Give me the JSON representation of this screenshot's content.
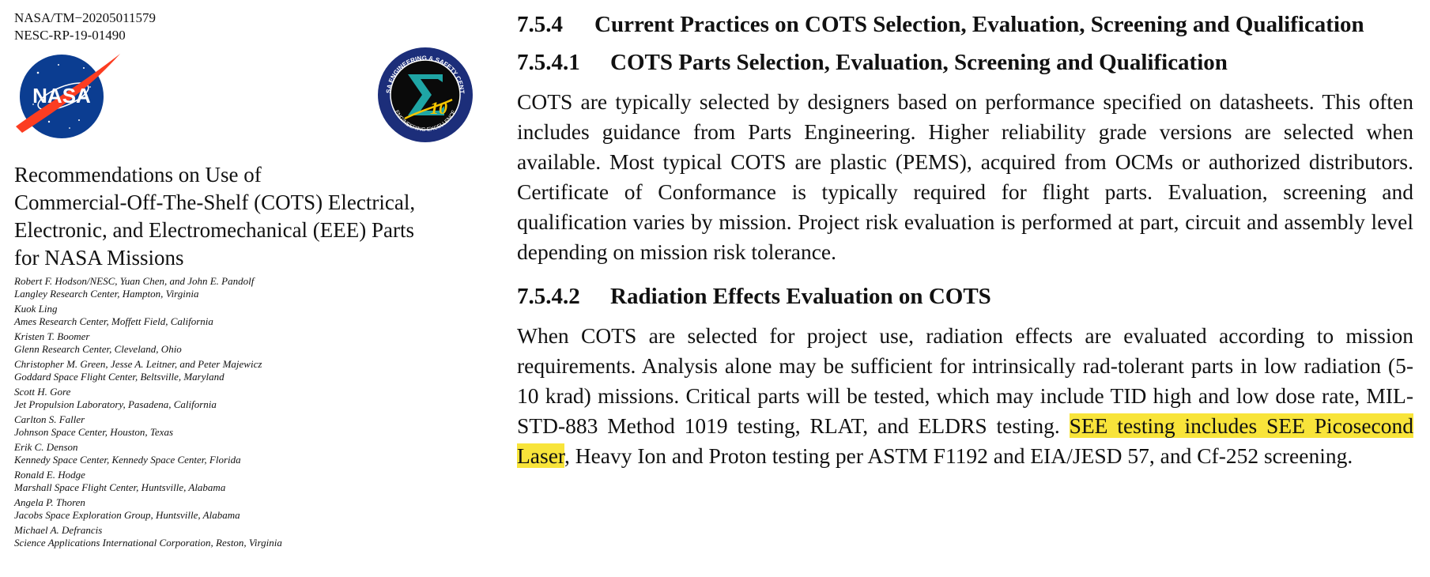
{
  "report": {
    "ids": [
      "NASA/TM−20205011579",
      "NESC-RP-19-01490"
    ],
    "logos": {
      "nasa": {
        "name": "nasa-meatball-logo",
        "lettering": "NASA",
        "colors": [
          "#0b3d91",
          "#fc3d21",
          "#ffffff"
        ]
      },
      "nesc": {
        "name": "nesc-sigma-logo",
        "lettering": "NASA ENGINEERING & SAFETY CENTER · ENGINEERING EXCELLENCE · 10",
        "colors": [
          "#1c2e7a",
          "#0a0a0a",
          "#1fa5a5",
          "#f5c400"
        ]
      }
    },
    "title_lines": [
      "Recommendations on Use of",
      "Commercial-Off-The-Shelf (COTS) Electrical,",
      "Electronic, and Electromechanical (EEE) Parts",
      "for NASA Missions"
    ],
    "authors": [
      {
        "names": "Robert F. Hodson/NESC, Yuan Chen, and John E. Pandolf",
        "org": "Langley Research Center, Hampton, Virginia"
      },
      {
        "names": "Kuok Ling",
        "org": "Ames Research Center, Moffett Field, California"
      },
      {
        "names": "Kristen T. Boomer",
        "org": "Glenn Research Center, Cleveland, Ohio"
      },
      {
        "names": "Christopher M. Green, Jesse A. Leitner, and Peter Majewicz",
        "org": "Goddard Space Flight Center, Beltsville, Maryland"
      },
      {
        "names": "Scott H. Gore",
        "org": "Jet Propulsion Laboratory, Pasadena, California"
      },
      {
        "names": "Carlton S. Faller",
        "org": "Johnson Space Center, Houston, Texas"
      },
      {
        "names": "Erik C. Denson",
        "org": "Kennedy Space Center, Kennedy Space Center, Florida"
      },
      {
        "names": "Ronald E. Hodge",
        "org": "Marshall Space Flight Center, Huntsville, Alabama"
      },
      {
        "names": "Angela P. Thoren",
        "org": "Jacobs Space Exploration Group, Huntsville, Alabama"
      },
      {
        "names": "Michael A. Defrancis",
        "org": "Science Applications International Corporation, Reston, Virginia"
      }
    ]
  },
  "content": {
    "section": {
      "num": "7.5.4",
      "title": "Current Practices on COTS Selection, Evaluation, Screening and Qualification"
    },
    "sub1": {
      "num": "7.5.4.1",
      "title": "COTS Parts Selection, Evaluation, Screening and Qualification",
      "body": "COTS are typically selected by designers based on performance specified on datasheets. This often includes guidance from Parts Engineering. Higher reliability grade versions are selected when available. Most typical COTS are plastic (PEMS), acquired from OCMs or authorized distributors. Certificate of Conformance is typically required for flight parts. Evaluation, screening and qualification varies by mission. Project risk evaluation is performed at part, circuit and assembly level depending on mission risk tolerance."
    },
    "sub2": {
      "num": "7.5.4.2",
      "title": "Radiation Effects Evaluation on COTS",
      "body_before": "When COTS are selected for project use, radiation effects are evaluated according to mission requirements. Analysis alone may be sufficient for intrinsically rad-tolerant parts in low radiation (5-10 krad) missions. Critical parts will be tested, which may include TID high and low dose rate, MIL-STD-883 Method 1019 testing, RLAT, and ELDRS testing. ",
      "body_highlight": "SEE testing includes SEE Picosecond Laser",
      "body_after": ", Heavy Ion and Proton testing per ASTM F1192 and EIA/JESD 57, and Cf-252 screening.",
      "highlight_color": "#f8e43a"
    }
  }
}
